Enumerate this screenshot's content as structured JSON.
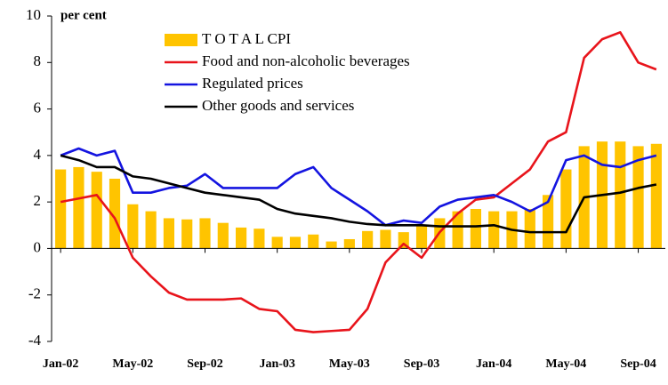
{
  "chart_data": {
    "type": "combo",
    "y_label": "per cent",
    "categories": [
      "Jan-02",
      null,
      null,
      null,
      "May-02",
      null,
      null,
      null,
      "Sep-02",
      null,
      null,
      null,
      "Jan-03",
      null,
      null,
      null,
      "May-03",
      null,
      null,
      null,
      "Sep-03",
      null,
      null,
      null,
      "Jan-04",
      null,
      null,
      null,
      "May-04",
      null,
      null,
      null,
      "Sep-04",
      null
    ],
    "series": [
      {
        "name": "T O T A L  CPI",
        "type": "bar",
        "color": "#FFC400",
        "values": [
          3.4,
          3.5,
          3.3,
          3.0,
          1.9,
          1.6,
          1.3,
          1.25,
          1.3,
          1.1,
          0.9,
          0.85,
          0.5,
          0.5,
          0.6,
          0.3,
          0.4,
          0.75,
          0.8,
          0.7,
          1.0,
          1.3,
          1.6,
          1.7,
          1.6,
          1.6,
          1.7,
          2.3,
          3.4,
          4.4,
          4.6,
          4.6,
          4.4,
          4.5
        ]
      },
      {
        "name": "Food and non-alcoholic beverages",
        "type": "line",
        "color": "#E8141B",
        "values": [
          2.0,
          2.15,
          2.3,
          1.3,
          -0.4,
          -1.2,
          -1.9,
          -2.2,
          -2.2,
          -2.2,
          -2.15,
          -2.6,
          -2.7,
          -3.5,
          -3.6,
          -3.55,
          -3.5,
          -2.6,
          -0.6,
          0.2,
          -0.4,
          0.7,
          1.5,
          2.1,
          2.2,
          2.8,
          3.4,
          4.6,
          5.0,
          8.2,
          9.0,
          9.3,
          8.0,
          7.7
        ]
      },
      {
        "name": "Regulated prices",
        "type": "line",
        "color": "#1414E0",
        "values": [
          4.0,
          4.3,
          4.0,
          4.2,
          2.4,
          2.4,
          2.6,
          2.7,
          3.2,
          2.6,
          2.6,
          2.6,
          2.6,
          3.2,
          3.5,
          2.6,
          2.1,
          1.6,
          1.0,
          1.2,
          1.1,
          1.8,
          2.1,
          2.2,
          2.3,
          2.0,
          1.6,
          2.0,
          3.8,
          4.0,
          3.6,
          3.5,
          3.8,
          4.0
        ]
      },
      {
        "name": "Other goods and services",
        "type": "line",
        "color": "#000000",
        "values": [
          4.0,
          3.8,
          3.5,
          3.5,
          3.1,
          3.0,
          2.8,
          2.6,
          2.4,
          2.3,
          2.2,
          2.1,
          1.7,
          1.5,
          1.4,
          1.3,
          1.15,
          1.05,
          1.0,
          1.0,
          1.0,
          0.95,
          0.95,
          0.95,
          1.0,
          0.8,
          0.7,
          0.7,
          0.7,
          2.2,
          2.3,
          2.4,
          2.6,
          2.75
        ]
      }
    ],
    "ylim": [
      -4,
      10
    ],
    "yticks": [
      -4,
      -2,
      0,
      2,
      4,
      6,
      8,
      10
    ],
    "legend": "top-left"
  }
}
